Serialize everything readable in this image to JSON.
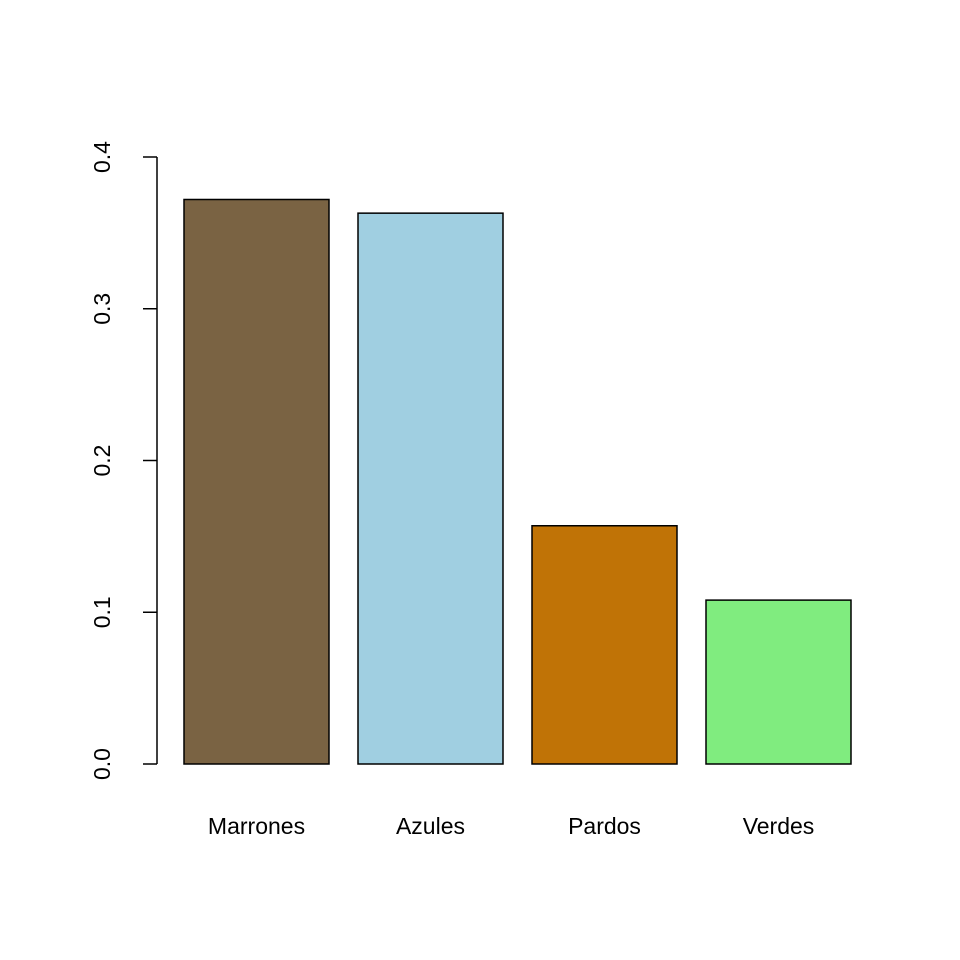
{
  "chart_data": {
    "type": "bar",
    "title": "",
    "xlabel": "",
    "ylabel": "",
    "categories": [
      "Marrones",
      "Azules",
      "Pardos",
      "Verdes"
    ],
    "values": [
      0.372,
      0.363,
      0.157,
      0.108
    ],
    "colors": [
      "#7A6343",
      "#A0CFE1",
      "#C07306",
      "#80EC7F"
    ],
    "ylim": [
      0,
      0.4
    ],
    "yticks": [
      0.0,
      0.1,
      0.2,
      0.3,
      0.4
    ],
    "ytick_labels": [
      "0.0",
      "0.1",
      "0.2",
      "0.3",
      "0.4"
    ],
    "grid": false,
    "legend": "none",
    "bar_border_color": "#000000",
    "axis_color": "#000000"
  }
}
